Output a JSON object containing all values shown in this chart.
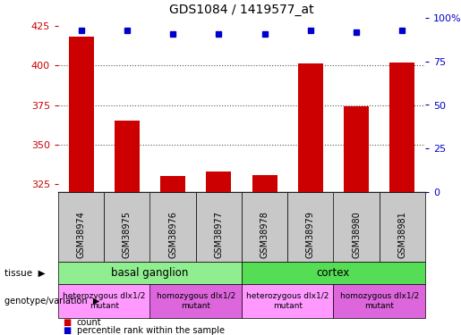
{
  "title": "GDS1084 / 1419577_at",
  "samples": [
    "GSM38974",
    "GSM38975",
    "GSM38976",
    "GSM38977",
    "GSM38978",
    "GSM38979",
    "GSM38980",
    "GSM38981"
  ],
  "counts": [
    418,
    365,
    330,
    333,
    331,
    401,
    374,
    402
  ],
  "percentiles": [
    93,
    93,
    91,
    91,
    91,
    93,
    92,
    93
  ],
  "ylim_left": [
    320,
    430
  ],
  "ylim_right": [
    0,
    100
  ],
  "yticks_left": [
    325,
    350,
    375,
    400,
    425
  ],
  "yticks_right": [
    0,
    25,
    50,
    75,
    100
  ],
  "ytick_labels_right": [
    "0",
    "25",
    "50",
    "75",
    "100%"
  ],
  "tissue_groups": [
    {
      "label": "basal ganglion",
      "start": 0,
      "end": 3,
      "color": "#90EE90"
    },
    {
      "label": "cortex",
      "start": 4,
      "end": 7,
      "color": "#55DD55"
    }
  ],
  "genotype_groups": [
    {
      "label": "heterozygous dlx1/2\nmutant",
      "start": 0,
      "end": 1,
      "color": "#FF99FF"
    },
    {
      "label": "homozygous dlx1/2\nmutant",
      "start": 2,
      "end": 3,
      "color": "#DD66DD"
    },
    {
      "label": "heterozygous dlx1/2\nmutant",
      "start": 4,
      "end": 5,
      "color": "#FF99FF"
    },
    {
      "label": "homozygous dlx1/2\nmutant",
      "start": 6,
      "end": 7,
      "color": "#DD66DD"
    }
  ],
  "bar_color": "#CC0000",
  "dot_color": "#0000CC",
  "grid_color": "#555555",
  "sample_box_color": "#C8C8C8",
  "label_color_left": "#CC0000",
  "label_color_right": "#0000CC",
  "fig_width": 5.15,
  "fig_height": 3.75,
  "dpi": 100
}
